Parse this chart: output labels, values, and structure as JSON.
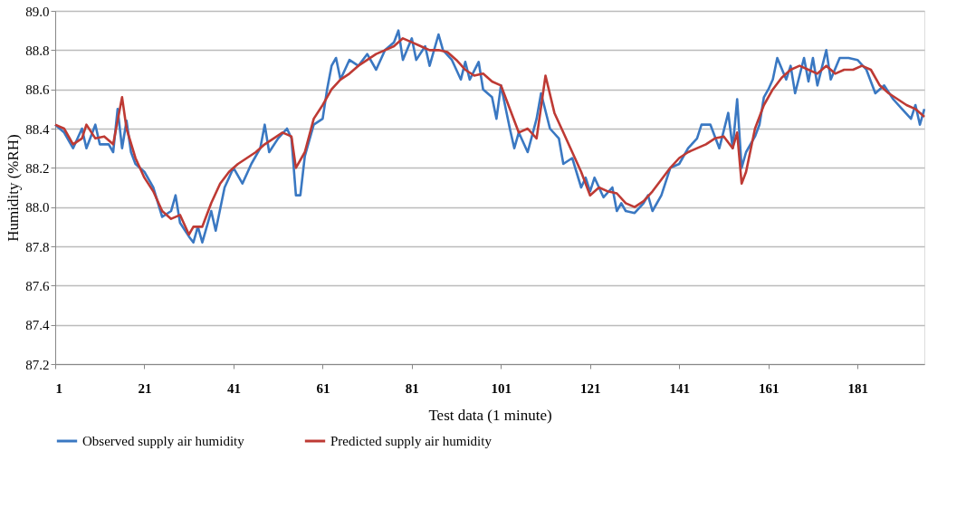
{
  "chart_data": {
    "type": "line",
    "xlabel": "Test data (1 minute)",
    "ylabel": "Humidity (%RH)",
    "xlim": [
      1,
      196
    ],
    "xticks": [
      1,
      21,
      41,
      61,
      81,
      101,
      121,
      141,
      161,
      181
    ],
    "ylim": [
      87.2,
      89.0
    ],
    "yticks": [
      {
        "value": 87.2,
        "label": "87.2"
      },
      {
        "value": 87.4,
        "label": "87.4"
      },
      {
        "value": 87.6,
        "label": "87.6"
      },
      {
        "value": 87.8,
        "label": "87.8"
      },
      {
        "value": 88.0,
        "label": "88.0"
      },
      {
        "value": 88.2,
        "label": "88.2"
      },
      {
        "value": 88.4,
        "label": "88.4"
      },
      {
        "value": 88.6,
        "label": "88.6"
      },
      {
        "value": 88.8,
        "label": "88.8"
      },
      {
        "value": 89.0,
        "label": "89.0"
      }
    ],
    "grid": "y",
    "legend": "bottom",
    "marker": "none",
    "line_style": "solid",
    "series": [
      {
        "name": "Observed supply air humidity",
        "color": "#3a78c2",
        "x": [
          1,
          3,
          5,
          7,
          8,
          10,
          11,
          13,
          14,
          15,
          16,
          17,
          18,
          19,
          21,
          23,
          25,
          27,
          28,
          29,
          31,
          32,
          33,
          34,
          36,
          37,
          39,
          41,
          43,
          45,
          47,
          48,
          49,
          51,
          53,
          54,
          55,
          56,
          57,
          59,
          61,
          62,
          63,
          64,
          65,
          67,
          69,
          71,
          73,
          75,
          77,
          78,
          79,
          81,
          82,
          84,
          85,
          87,
          88,
          90,
          92,
          93,
          94,
          96,
          97,
          99,
          100,
          101,
          103,
          104,
          105,
          107,
          109,
          110,
          112,
          114,
          115,
          117,
          119,
          120,
          121,
          122,
          124,
          126,
          127,
          128,
          129,
          131,
          133,
          134,
          135,
          137,
          139,
          141,
          143,
          145,
          146,
          148,
          150,
          152,
          153,
          154,
          155,
          156,
          158,
          159,
          160,
          161,
          162,
          163,
          165,
          166,
          167,
          169,
          170,
          171,
          172,
          174,
          175,
          177,
          179,
          181,
          183,
          185,
          187,
          189,
          191,
          193,
          194,
          195,
          196
        ],
        "values": [
          88.42,
          88.38,
          88.3,
          88.4,
          88.3,
          88.42,
          88.32,
          88.32,
          88.28,
          88.5,
          88.3,
          88.44,
          88.28,
          88.22,
          88.18,
          88.1,
          87.95,
          87.98,
          88.06,
          87.92,
          87.85,
          87.82,
          87.9,
          87.82,
          87.98,
          87.88,
          88.1,
          88.2,
          88.12,
          88.22,
          88.3,
          88.42,
          88.28,
          88.35,
          88.4,
          88.35,
          88.06,
          88.06,
          88.26,
          88.42,
          88.45,
          88.6,
          88.72,
          88.76,
          88.65,
          88.75,
          88.72,
          88.78,
          88.7,
          88.8,
          88.84,
          88.9,
          88.75,
          88.86,
          88.75,
          88.82,
          88.72,
          88.88,
          88.8,
          88.75,
          88.65,
          88.74,
          88.65,
          88.74,
          88.6,
          88.56,
          88.45,
          88.62,
          88.4,
          88.3,
          88.38,
          88.28,
          88.45,
          88.58,
          88.4,
          88.35,
          88.22,
          88.25,
          88.1,
          88.15,
          88.08,
          88.15,
          88.05,
          88.1,
          87.98,
          88.02,
          87.98,
          87.97,
          88.02,
          88.06,
          87.98,
          88.06,
          88.2,
          88.22,
          88.3,
          88.35,
          88.42,
          88.42,
          88.3,
          88.48,
          88.3,
          88.55,
          88.2,
          88.28,
          88.36,
          88.42,
          88.56,
          88.6,
          88.65,
          88.76,
          88.65,
          88.72,
          88.58,
          88.76,
          88.64,
          88.76,
          88.62,
          88.8,
          88.65,
          88.76,
          88.76,
          88.75,
          88.7,
          88.58,
          88.62,
          88.55,
          88.5,
          88.45,
          88.52,
          88.42,
          88.5
        ]
      },
      {
        "name": "Predicted supply air humidity",
        "color": "#be3a34",
        "x": [
          1,
          3,
          5,
          7,
          8,
          10,
          12,
          14,
          16,
          17,
          19,
          21,
          23,
          25,
          27,
          29,
          31,
          32,
          34,
          36,
          38,
          40,
          42,
          44,
          46,
          48,
          50,
          52,
          54,
          55,
          57,
          59,
          61,
          63,
          65,
          67,
          69,
          71,
          73,
          75,
          77,
          79,
          81,
          83,
          85,
          87,
          89,
          91,
          93,
          95,
          97,
          99,
          101,
          103,
          105,
          107,
          109,
          111,
          113,
          115,
          117,
          119,
          121,
          123,
          125,
          127,
          129,
          131,
          133,
          135,
          137,
          139,
          141,
          143,
          145,
          147,
          149,
          151,
          153,
          154,
          155,
          156,
          158,
          160,
          162,
          164,
          166,
          168,
          170,
          172,
          174,
          176,
          178,
          180,
          182,
          184,
          186,
          188,
          190,
          192,
          194,
          196
        ],
        "values": [
          88.42,
          88.4,
          88.32,
          88.35,
          88.42,
          88.35,
          88.36,
          88.32,
          88.56,
          88.4,
          88.25,
          88.15,
          88.08,
          87.98,
          87.94,
          87.96,
          87.86,
          87.9,
          87.9,
          88.02,
          88.12,
          88.18,
          88.22,
          88.25,
          88.28,
          88.32,
          88.35,
          88.38,
          88.36,
          88.2,
          88.28,
          88.45,
          88.52,
          88.6,
          88.65,
          88.68,
          88.72,
          88.75,
          88.78,
          88.8,
          88.82,
          88.86,
          88.84,
          88.82,
          88.8,
          88.8,
          88.79,
          88.75,
          88.7,
          88.67,
          88.68,
          88.64,
          88.62,
          88.5,
          88.38,
          88.4,
          88.35,
          88.67,
          88.48,
          88.38,
          88.28,
          88.18,
          88.06,
          88.1,
          88.08,
          88.07,
          88.02,
          88.0,
          88.03,
          88.08,
          88.14,
          88.2,
          88.25,
          88.28,
          88.3,
          88.32,
          88.35,
          88.36,
          88.3,
          88.38,
          88.12,
          88.18,
          88.4,
          88.52,
          88.6,
          88.66,
          88.7,
          88.72,
          88.7,
          88.68,
          88.72,
          88.68,
          88.7,
          88.7,
          88.72,
          88.7,
          88.62,
          88.58,
          88.55,
          88.52,
          88.5,
          88.46
        ]
      }
    ]
  }
}
